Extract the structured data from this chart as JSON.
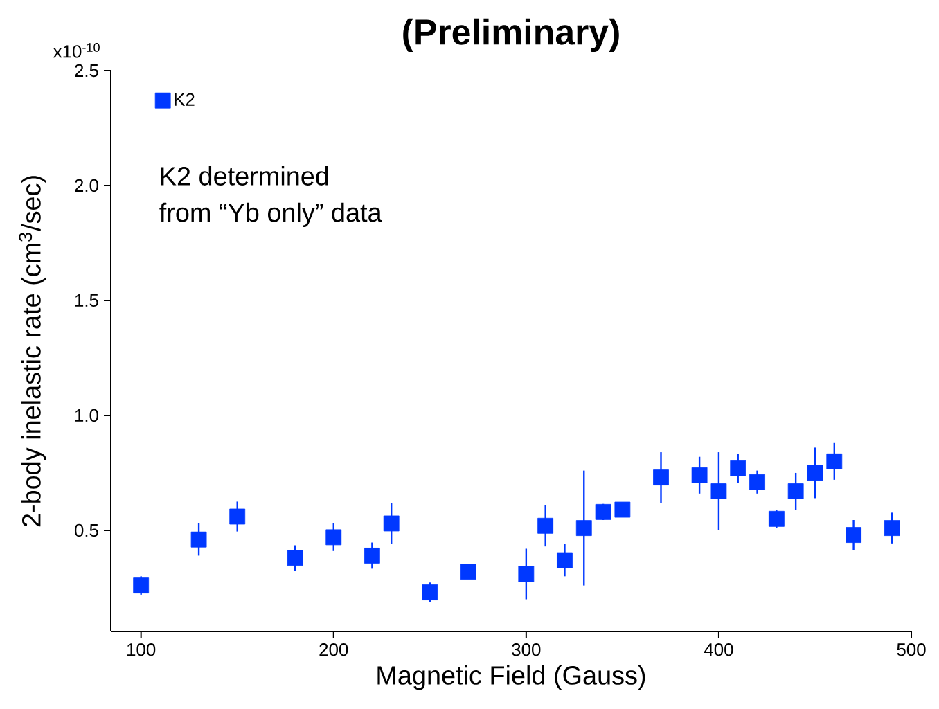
{
  "chart_data": {
    "type": "scatter",
    "title": "(Preliminary)",
    "xlabel": "Magnetic Field (Gauss)",
    "ylabel": "2-body inelastic rate (cm$^{3}$/sec)",
    "annotations": [
      "K2 determined",
      "from “Yb only” data",
      "x10$^{-10}$"
    ],
    "x": [
      100,
      130,
      150,
      180,
      200,
      220,
      230,
      250,
      270,
      300,
      310,
      320,
      330,
      340,
      350,
      370,
      390,
      400,
      410,
      420,
      430,
      440,
      450,
      460,
      470,
      490
    ],
    "series": [
      {
        "name": "K2",
        "color": "#0038ff",
        "values": [
          0.26,
          0.46,
          0.56,
          0.38,
          0.47,
          0.39,
          0.53,
          0.23,
          0.32,
          0.31,
          0.52,
          0.37,
          0.51,
          0.58,
          0.59,
          0.73,
          0.74,
          0.67,
          0.77,
          0.71,
          0.55,
          0.67,
          0.75,
          0.8,
          0.48,
          0.51
        ],
        "errors": [
          0.04,
          0.07,
          0.065,
          0.055,
          0.06,
          0.057,
          0.088,
          0.043,
          null,
          0.11,
          0.09,
          0.07,
          0.25,
          0.035,
          null,
          0.11,
          0.08,
          0.17,
          0.063,
          0.05,
          0.04,
          0.08,
          0.11,
          0.08,
          0.065,
          0.067
        ]
      }
    ],
    "xlim": [
      84.3,
      500
    ],
    "ylim": [
      0.06,
      2.5
    ],
    "xticks": [
      100,
      200,
      300,
      400,
      500
    ],
    "yticks": [
      0.5,
      {
        "value": 1,
        "label": "1.0"
      },
      1.5,
      {
        "value": 2,
        "label": "2.0"
      },
      2.5
    ],
    "grid": false,
    "legend": "top left",
    "marker": "square"
  }
}
